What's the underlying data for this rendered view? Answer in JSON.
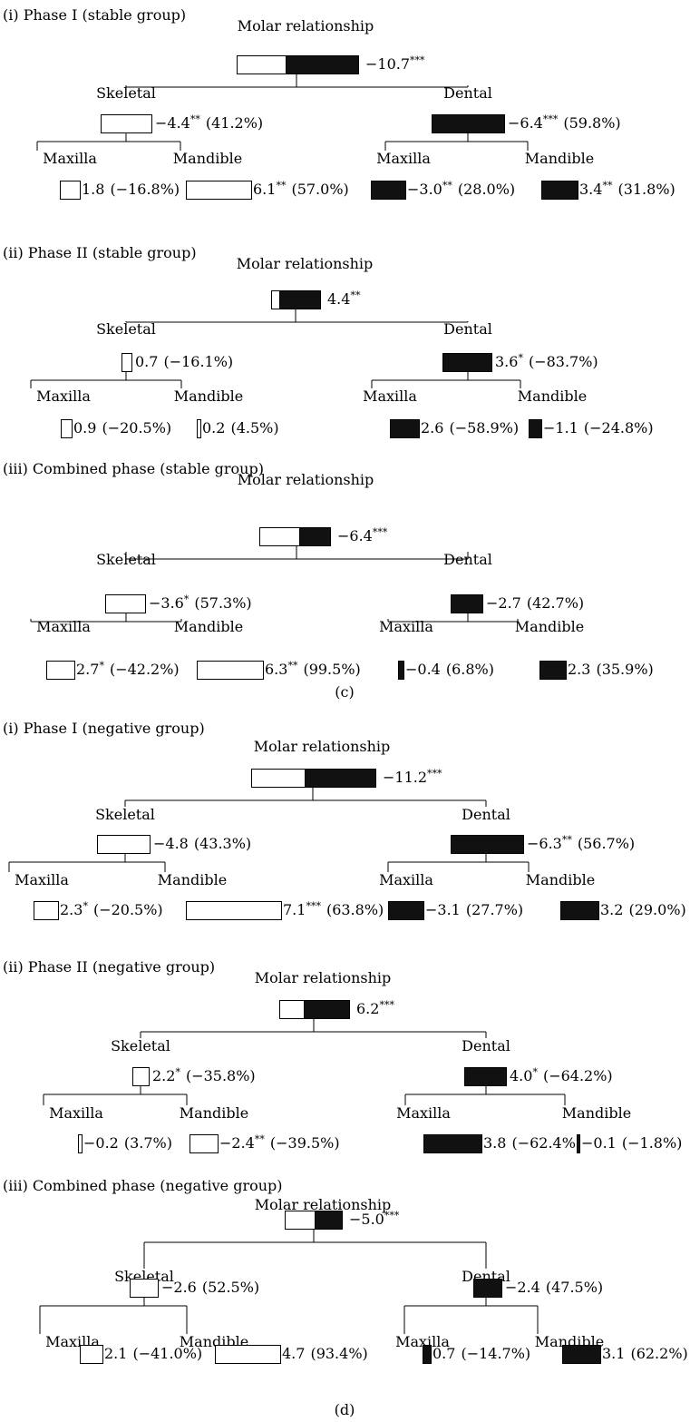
{
  "panel_labels": [
    "(c)",
    "(d)"
  ],
  "sections": [
    {
      "title": "(i) Phase I (stable group)",
      "root": {
        "label": "Molar relationship",
        "value": "−10.7",
        "stars": "***",
        "pct": ""
      },
      "skeletal": {
        "label": "Skeletal",
        "value": "−4.4",
        "stars": "**",
        "pct": "(41.2%)"
      },
      "dental": {
        "label": "Dental",
        "value": "−6.4",
        "stars": "***",
        "pct": "(59.8%)"
      },
      "skeletal_maxilla": {
        "label": "Maxilla",
        "value": "1.8",
        "stars": "",
        "pct": "(−16.8%)"
      },
      "skeletal_mandible": {
        "label": "Mandible",
        "value": "6.1",
        "stars": "**",
        "pct": "(57.0%)"
      },
      "dental_maxilla": {
        "label": "Maxilla",
        "value": "−3.0",
        "stars": "**",
        "pct": "(28.0%)"
      },
      "dental_mandible": {
        "label": "Mandible",
        "value": "3.4",
        "stars": "**",
        "pct": "(31.8%)"
      }
    },
    {
      "title": "(ii) Phase II (stable group)",
      "root": {
        "label": "Molar relationship",
        "value": "4.4",
        "stars": "**",
        "pct": ""
      },
      "skeletal": {
        "label": "Skeletal",
        "value": "0.7",
        "stars": "",
        "pct": "(−16.1%)"
      },
      "dental": {
        "label": "Dental",
        "value": "3.6",
        "stars": "*",
        "pct": "(−83.7%)"
      },
      "skeletal_maxilla": {
        "label": "Maxilla",
        "value": "0.9",
        "stars": "",
        "pct": "(−20.5%)"
      },
      "skeletal_mandible": {
        "label": "Mandible",
        "value": "0.2",
        "stars": "",
        "pct": "(4.5%)"
      },
      "dental_maxilla": {
        "label": "Maxilla",
        "value": "2.6",
        "stars": "",
        "pct": "(−58.9%)"
      },
      "dental_mandible": {
        "label": "Mandible",
        "value": "−1.1",
        "stars": "",
        "pct": "(−24.8%)"
      }
    },
    {
      "title": "(iii) Combined phase (stable group)",
      "root": {
        "label": "Molar relationship",
        "value": "−6.4",
        "stars": "***",
        "pct": ""
      },
      "skeletal": {
        "label": "Skeletal",
        "value": "−3.6",
        "stars": "*",
        "pct": "(57.3%)"
      },
      "dental": {
        "label": "Dental",
        "value": "−2.7",
        "stars": "",
        "pct": "(42.7%)"
      },
      "skeletal_maxilla": {
        "label": "Maxilla",
        "value": "2.7",
        "stars": "*",
        "pct": "(−42.2%)"
      },
      "skeletal_mandible": {
        "label": "Mandible",
        "value": "6.3",
        "stars": "**",
        "pct": "(99.5%)"
      },
      "dental_maxilla": {
        "label": "Maxilla",
        "value": "−0.4",
        "stars": "",
        "pct": "(6.8%)"
      },
      "dental_mandible": {
        "label": "Mandible",
        "value": "2.3",
        "stars": "",
        "pct": "(35.9%)"
      }
    },
    {
      "title": "(i) Phase I (negative group)",
      "root": {
        "label": "Molar relationship",
        "value": "−11.2",
        "stars": "***",
        "pct": ""
      },
      "skeletal": {
        "label": "Skeletal",
        "value": "−4.8",
        "stars": "",
        "pct": "(43.3%)"
      },
      "dental": {
        "label": "Dental",
        "value": "−6.3",
        "stars": "**",
        "pct": "(56.7%)"
      },
      "skeletal_maxilla": {
        "label": "Maxilla",
        "value": "2.3",
        "stars": "*",
        "pct": "(−20.5%)"
      },
      "skeletal_mandible": {
        "label": "Mandible",
        "value": "7.1",
        "stars": "***",
        "pct": "(63.8%)"
      },
      "dental_maxilla": {
        "label": "Maxilla",
        "value": "−3.1",
        "stars": "",
        "pct": "(27.7%)"
      },
      "dental_mandible": {
        "label": "Mandible",
        "value": "3.2",
        "stars": "",
        "pct": "(29.0%)"
      }
    },
    {
      "title": "(ii) Phase II (negative group)",
      "root": {
        "label": "Molar relationship",
        "value": "6.2",
        "stars": "***",
        "pct": ""
      },
      "skeletal": {
        "label": "Skeletal",
        "value": "2.2",
        "stars": "*",
        "pct": "(−35.8%)"
      },
      "dental": {
        "label": "Dental",
        "value": "4.0",
        "stars": "*",
        "pct": "(−64.2%)"
      },
      "skeletal_maxilla": {
        "label": "Maxilla",
        "value": "−0.2",
        "stars": "",
        "pct": "(3.7%)"
      },
      "skeletal_mandible": {
        "label": "Mandible",
        "value": "−2.4",
        "stars": "**",
        "pct": "(−39.5%)"
      },
      "dental_maxilla": {
        "label": "Maxilla",
        "value": "3.8",
        "stars": "",
        "pct": "(−62.4%)"
      },
      "dental_mandible": {
        "label": "Mandible",
        "value": "−0.1",
        "stars": "",
        "pct": "(−1.8%)"
      }
    },
    {
      "title": "(iii) Combined phase (negative group)",
      "root": {
        "label": "Molar relationship",
        "value": "−5.0",
        "stars": "***",
        "pct": ""
      },
      "skeletal": {
        "label": "Skeletal",
        "value": "−2.6",
        "stars": "",
        "pct": "(52.5%)"
      },
      "dental": {
        "label": "Dental",
        "value": "−2.4",
        "stars": "",
        "pct": "(47.5%)"
      },
      "skeletal_maxilla": {
        "label": "Maxilla",
        "value": "2.1",
        "stars": "",
        "pct": "(−41.0%)"
      },
      "skeletal_mandible": {
        "label": "Mandible",
        "value": "4.7",
        "stars": "",
        "pct": "(93.4%)"
      },
      "dental_maxilla": {
        "label": "Maxilla",
        "value": "0.7",
        "stars": "",
        "pct": "(−14.7%)"
      },
      "dental_mandible": {
        "label": "Mandible",
        "value": "3.1",
        "stars": "",
        "pct": "(62.2%)"
      }
    }
  ]
}
